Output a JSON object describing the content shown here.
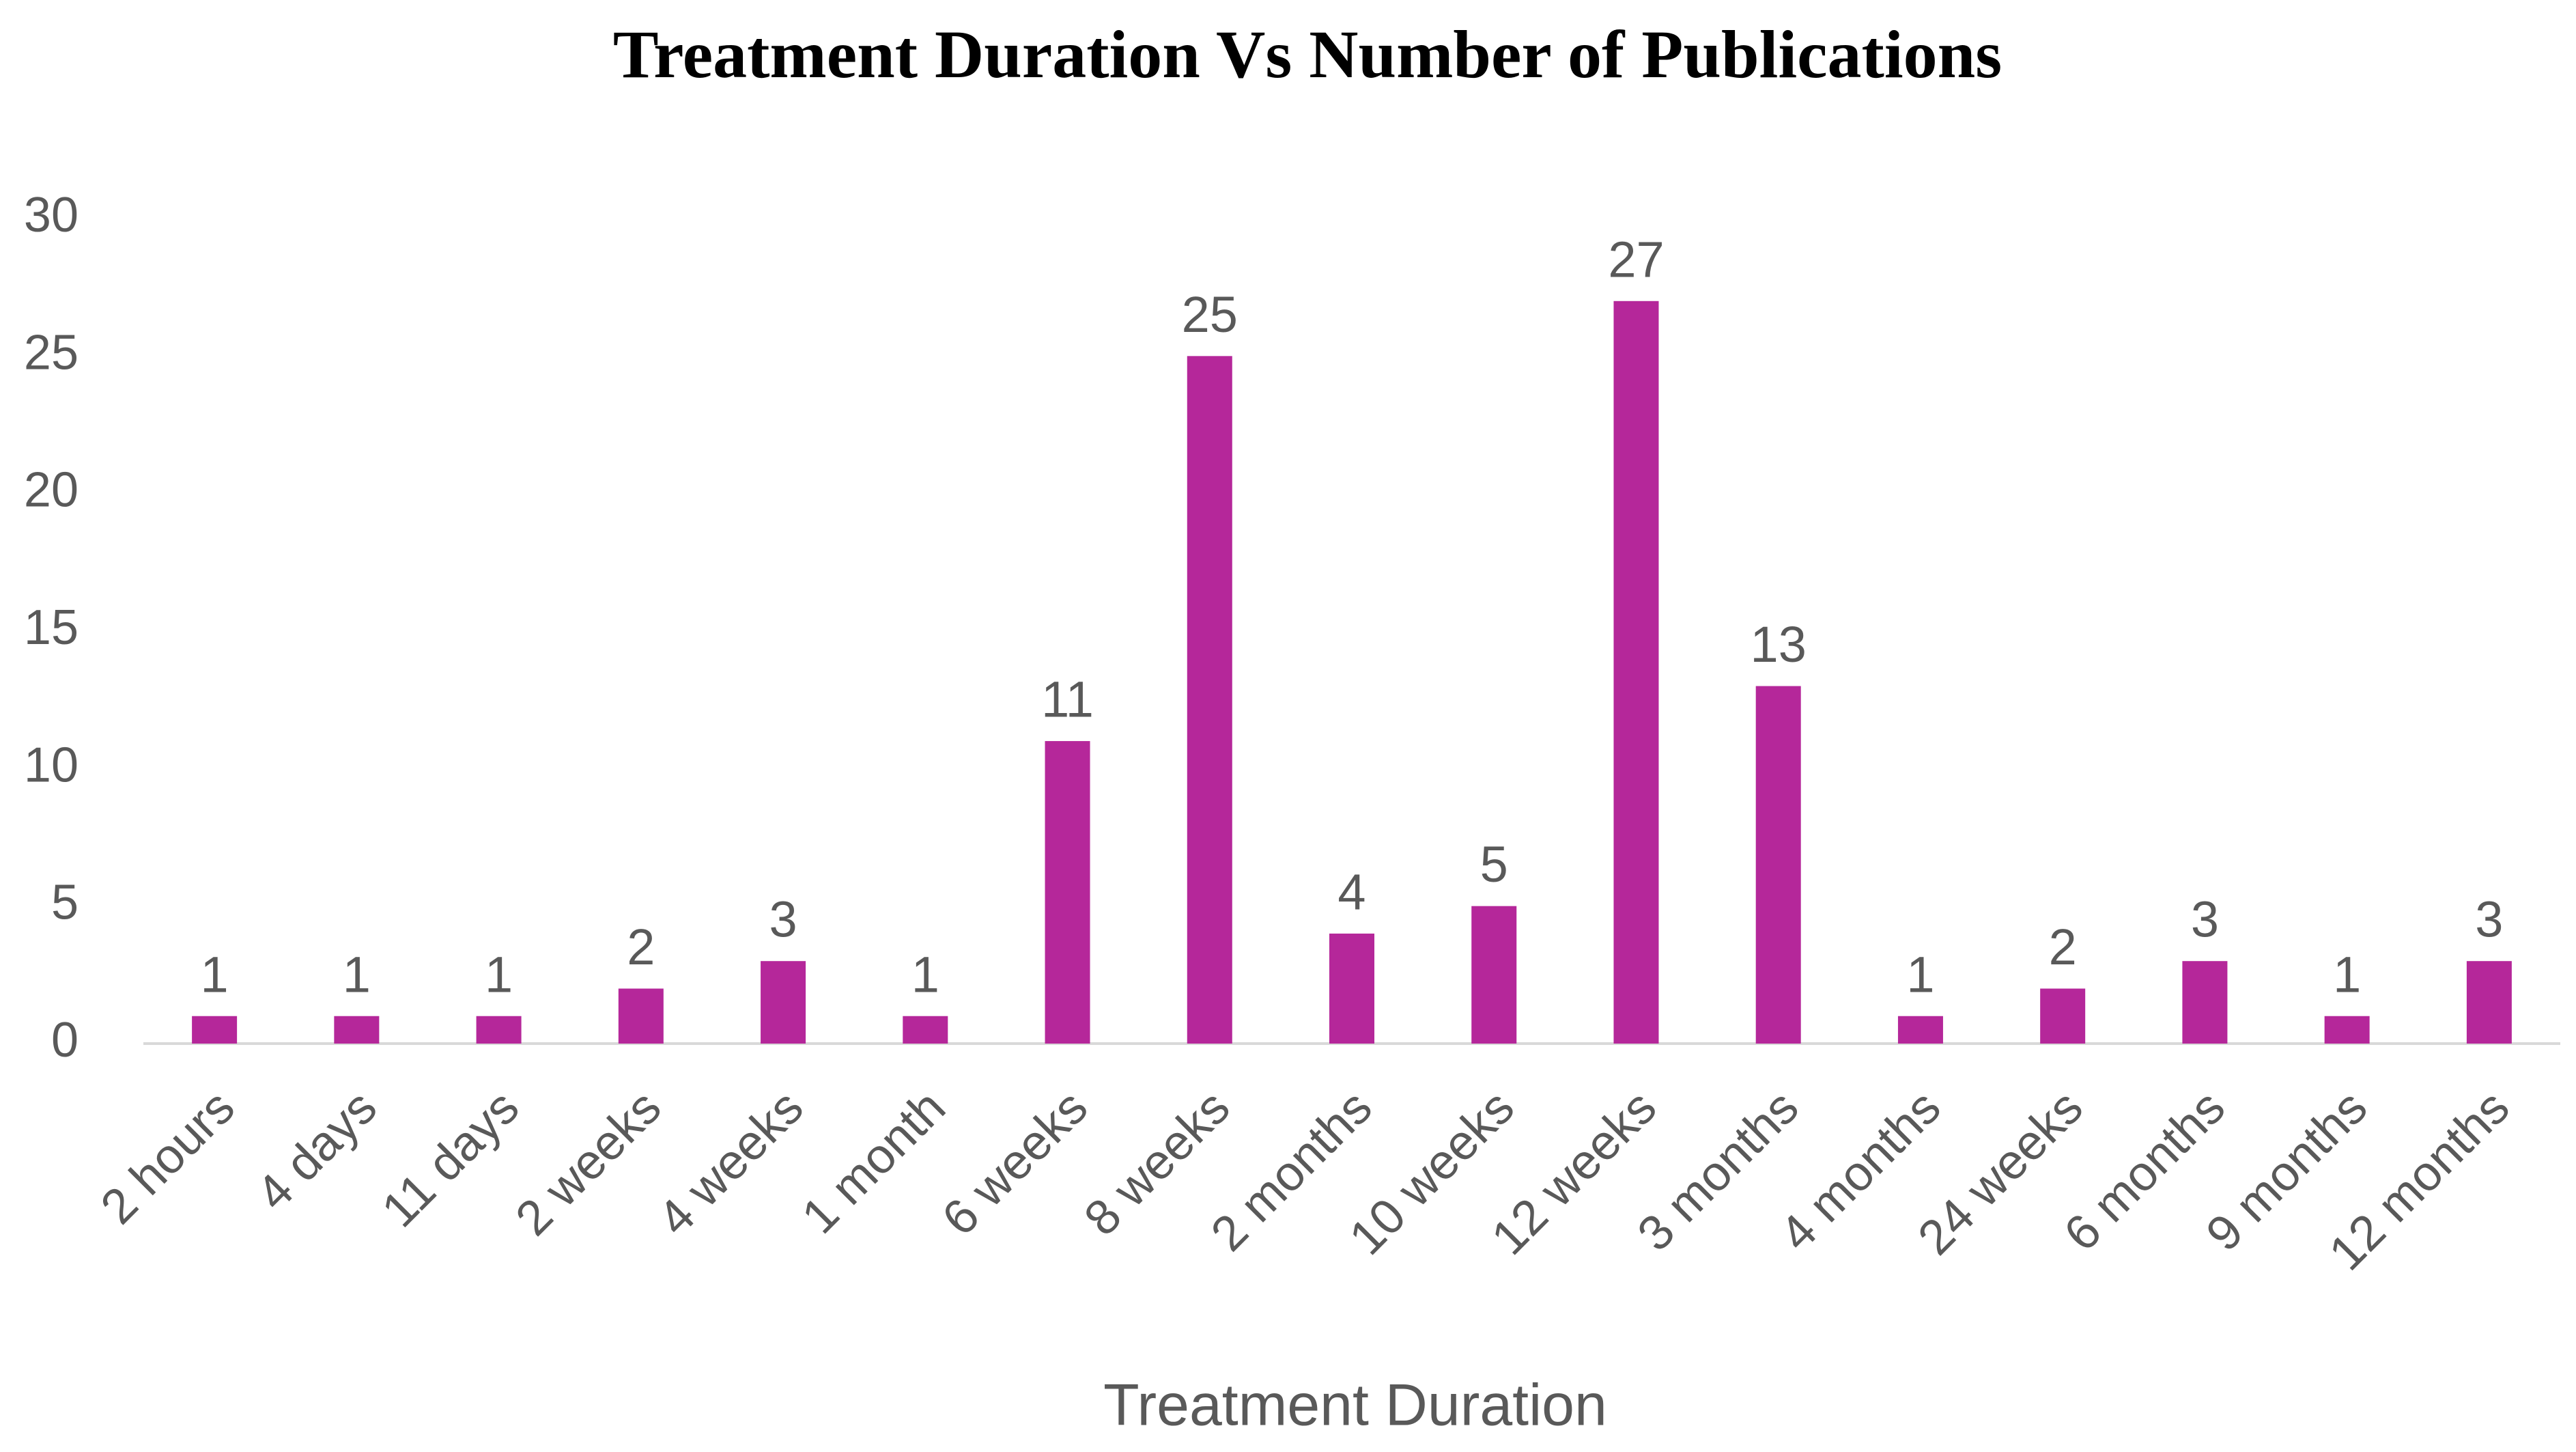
{
  "chart_data": {
    "type": "bar",
    "title": "Treatment Duration Vs Number of Publications",
    "x_label": "Treatment Duration",
    "categories": [
      "2 hours",
      "4 days",
      "11 days",
      "2 weeks",
      "4 weeks",
      "1 month",
      "6 weeks",
      "8 weeks",
      "2 months",
      "10 weeks",
      "12 weeks",
      "3 months",
      "4 months",
      "24 weeks",
      "6 months",
      "9 months",
      "12 months"
    ],
    "values": [
      1,
      1,
      1,
      2,
      3,
      1,
      11,
      25,
      4,
      5,
      27,
      13,
      1,
      2,
      3,
      1,
      3
    ],
    "color": "#b5279a",
    "ylim": [
      0,
      30
    ],
    "yticks": [
      0,
      5,
      10,
      15,
      20,
      25,
      30
    ],
    "grid": false
  }
}
